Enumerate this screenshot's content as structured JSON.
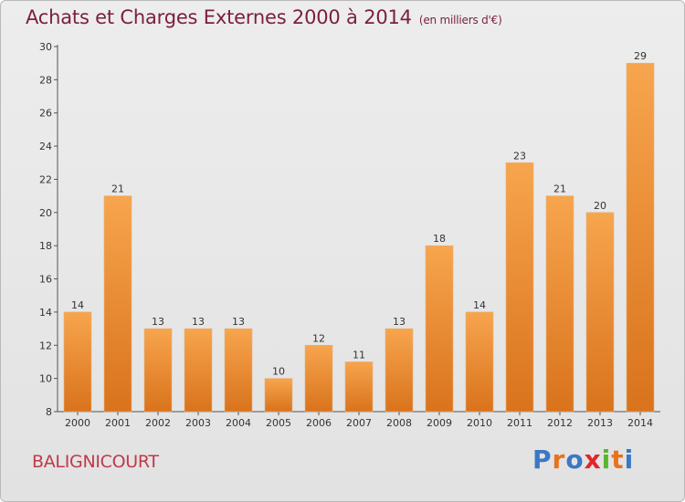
{
  "header": {
    "title": "Achats et Charges Externes 2000 à 2014",
    "unit": "(en milliers d'€)"
  },
  "footer": {
    "place": "BALIGNICOURT",
    "logo": "Proxiti",
    "logo_colors": [
      "#3a78c3",
      "#e8731e",
      "#3a78c3",
      "#e0262a",
      "#58b62d",
      "#e8731e",
      "#3a78c3"
    ]
  },
  "colors": {
    "bar_light": "#f7a54e",
    "bar_dark": "#d9731c",
    "title": "#7a1f3d",
    "place": "#c0394a"
  },
  "chart_data": {
    "type": "bar",
    "categories": [
      "2000",
      "2001",
      "2002",
      "2003",
      "2004",
      "2005",
      "2006",
      "2007",
      "2008",
      "2009",
      "2010",
      "2011",
      "2012",
      "2013",
      "2014"
    ],
    "values": [
      14,
      21,
      13,
      13,
      13,
      10,
      12,
      11,
      13,
      18,
      14,
      23,
      21,
      20,
      29
    ],
    "ylim": [
      8,
      30
    ],
    "yticks": [
      8,
      10,
      12,
      14,
      16,
      18,
      20,
      22,
      24,
      26,
      28,
      30
    ],
    "title": "Achats et Charges Externes 2000 à 2014",
    "xlabel": "",
    "ylabel": "",
    "grid": false,
    "data_labels": true
  }
}
